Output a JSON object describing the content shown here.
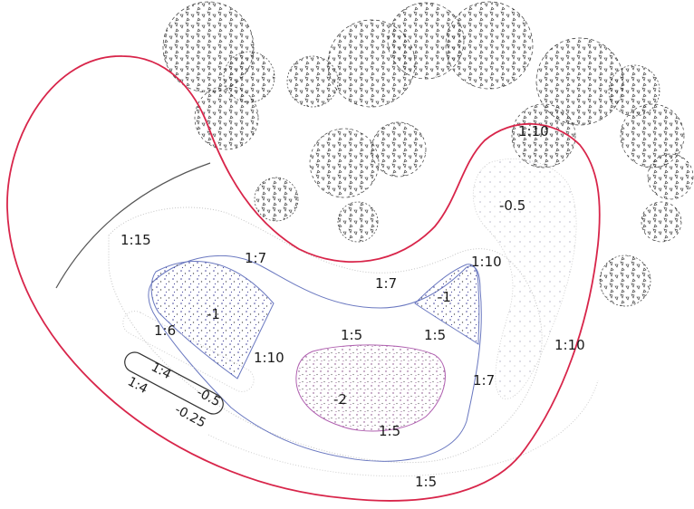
{
  "labels": {
    "slope_1_15": "1:15",
    "slope_1_10_top": "1:10",
    "slope_1_10_right_a": "1:10",
    "slope_1_10_right_b": "1:10",
    "slope_1_10_mid": "1:10",
    "slope_1_7_a": "1:7",
    "slope_1_7_b": "1:7",
    "slope_1_7_c": "1:7",
    "slope_1_6": "1:6",
    "slope_1_5_a": "1:5",
    "slope_1_5_b": "1:5",
    "slope_1_5_c": "1:5",
    "slope_1_5_d": "1:5",
    "slope_1_4_a": "1:4",
    "slope_1_4_b": "1:4",
    "level_neg1_left": "-1",
    "level_neg1_right": "-1",
    "level_neg0_5_right": "-0.5",
    "level_neg0_5_left": "-0.5",
    "level_neg2": "-2",
    "level_neg0_25": "-0.25"
  },
  "colors": {
    "boundary": "#d8254a",
    "contour_blue": "#6a78c0",
    "contour_magenta": "#b060b0",
    "contour_grey": "#b8b8b8",
    "tree_ink": "#3a3a3a"
  }
}
